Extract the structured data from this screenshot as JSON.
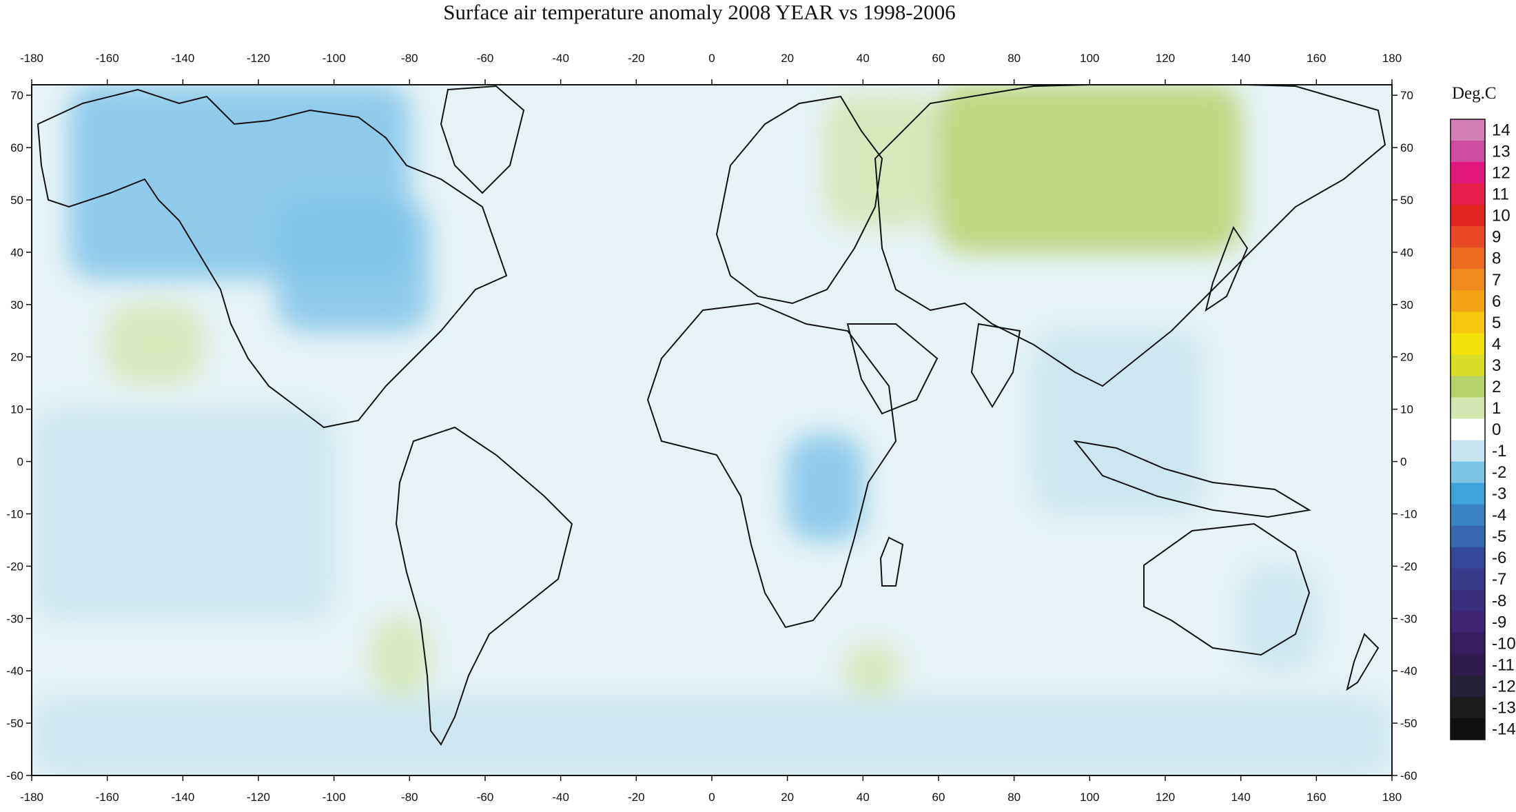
{
  "title": "Surface air temperature anomaly 2008 YEAR vs 1998-2006",
  "lon_ticks": [
    -180,
    -160,
    -140,
    -120,
    -100,
    -80,
    -60,
    -40,
    -20,
    0,
    20,
    40,
    60,
    80,
    100,
    120,
    140,
    160,
    180
  ],
  "lat_ticks": [
    70,
    60,
    50,
    40,
    30,
    20,
    10,
    0,
    -10,
    -20,
    -30,
    -40,
    -50,
    -60
  ],
  "lon_range": [
    -180,
    180
  ],
  "lat_range": [
    -60,
    72
  ],
  "colorbar": {
    "title": "Deg.C",
    "levels": [
      14,
      13,
      12,
      11,
      10,
      9,
      8,
      7,
      6,
      5,
      4,
      3,
      2,
      1,
      0,
      -1,
      -2,
      -3,
      -4,
      -5,
      -6,
      -7,
      -8,
      -9,
      -10,
      -11,
      -12,
      -13,
      -14
    ],
    "colors": [
      "#d27fb6",
      "#cf4d9e",
      "#e0177a",
      "#e81e4c",
      "#e2241f",
      "#e84a24",
      "#ed6b21",
      "#f08a1d",
      "#f5a316",
      "#f7c60f",
      "#f3e10a",
      "#d9df26",
      "#b6d36a",
      "#d4e6b2",
      "#ffffff",
      "#c9e4ef",
      "#7cc4e6",
      "#3fa3db",
      "#3a83c6",
      "#3867b2",
      "#35479b",
      "#3a3a8c",
      "#3c2f7e",
      "#3e2471",
      "#371c5f",
      "#2e1a4b",
      "#262037",
      "#1d1d1d",
      "#111111"
    ]
  },
  "anomaly_regions": [
    {
      "name": "russia-siberia-warm",
      "lon": [
        60,
        140
      ],
      "lat": [
        40,
        72
      ],
      "value": 2
    },
    {
      "name": "western-russia-warm",
      "lon": [
        30,
        60
      ],
      "lat": [
        45,
        70
      ],
      "value": 1
    },
    {
      "name": "north-pacific-warm",
      "lon": [
        -160,
        -135
      ],
      "lat": [
        15,
        30
      ],
      "value": 1
    },
    {
      "name": "canada-alaska-cold",
      "lon": [
        -170,
        -80
      ],
      "lat": [
        35,
        72
      ],
      "value": -2
    },
    {
      "name": "central-north-america-cold",
      "lon": [
        -115,
        -75
      ],
      "lat": [
        25,
        50
      ],
      "value": -2
    },
    {
      "name": "east-pacific-cold",
      "lon": [
        -180,
        -100
      ],
      "lat": [
        -30,
        10
      ],
      "value": -1
    },
    {
      "name": "southeast-asia-cold",
      "lon": [
        85,
        130
      ],
      "lat": [
        -10,
        25
      ],
      "value": -1
    },
    {
      "name": "east-africa-cold",
      "lon": [
        20,
        40
      ],
      "lat": [
        -15,
        5
      ],
      "value": -2
    },
    {
      "name": "australia-cold",
      "lon": [
        140,
        160
      ],
      "lat": [
        -40,
        -20
      ],
      "value": -1
    },
    {
      "name": "southern-ocean-cold",
      "lon": [
        -180,
        180
      ],
      "lat": [
        -60,
        -45
      ],
      "value": -1
    },
    {
      "name": "south-atlantic-warm",
      "lon": [
        -90,
        -75
      ],
      "lat": [
        -45,
        -30
      ],
      "value": 1
    },
    {
      "name": "indian-ocean-warm",
      "lon": [
        35,
        50
      ],
      "lat": [
        -45,
        -35
      ],
      "value": 1
    }
  ]
}
